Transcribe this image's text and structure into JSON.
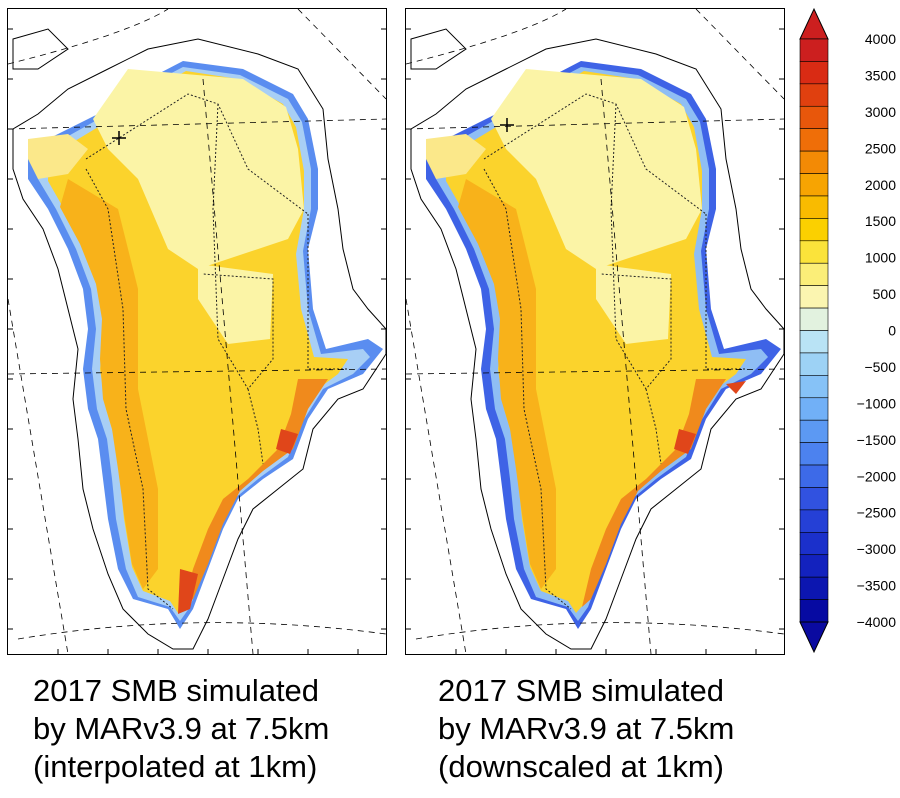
{
  "maps": [
    {
      "id": "interpolated",
      "caption_lines": [
        "2017 SMB simulated",
        "by MARv3.9 at 7.5km",
        "(interpolated at 1km)"
      ]
    },
    {
      "id": "downscaled",
      "caption_lines": [
        "2017 SMB simulated",
        "by MARv3.9 at 7.5km",
        "(downscaled at 1km)"
      ]
    }
  ],
  "colorbar": {
    "levels": [
      4000,
      3500,
      3000,
      2500,
      2000,
      1500,
      1000,
      500,
      0,
      -500,
      -1000,
      -1500,
      -2000,
      -2500,
      -3000,
      -3500,
      -4000
    ],
    "labels": [
      "4000",
      "3500",
      "3000",
      "2500",
      "2000",
      "1500",
      "1000",
      "500",
      "0",
      "−500",
      "−1000",
      "−1500",
      "−2000",
      "−2500",
      "−3000",
      "−3500",
      "−4000"
    ],
    "colors": [
      "#cc1f1f",
      "#d92b14",
      "#e0400f",
      "#e8570b",
      "#ef6e08",
      "#f38a05",
      "#f7a402",
      "#f9bb00",
      "#fbd000",
      "#fbe33a",
      "#fbee78",
      "#fbf5b0",
      "#e2f2df",
      "#b9e3f5",
      "#9dd2f5",
      "#86c2f7",
      "#71b0f7",
      "#5c99f3",
      "#4c82ef",
      "#3d6ae8",
      "#3152e0",
      "#2540d6",
      "#1b30cb",
      "#1322be",
      "#0c16b0",
      "#060aa2"
    ],
    "top_arrow_color": "#cc1f1f",
    "bottom_arrow_color": "#0a0aa0"
  },
  "palette": {
    "ice_interior_light": "#fbf4a6",
    "ice_main": "#fbd32c",
    "ice_warm": "#f8b21a",
    "margin_orange": "#f08a1c",
    "margin_red": "#e0461a",
    "ablation_blue": "#3e63e6",
    "ablation_light_blue": "#9cc6f4",
    "coast_line": "#000000"
  },
  "markers": [
    {
      "name": "cross-marker",
      "glyph": "+"
    }
  ]
}
